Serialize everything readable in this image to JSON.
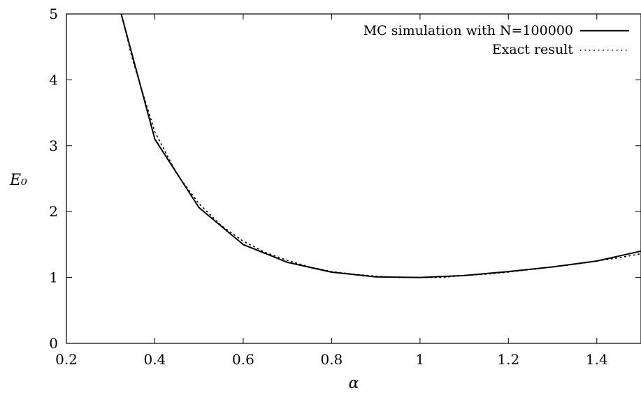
{
  "chart_data": {
    "type": "line",
    "title": "",
    "xlabel": "α",
    "ylabel": "E₀",
    "xlim": [
      0.2,
      1.5
    ],
    "ylim": [
      0,
      5
    ],
    "x_ticks": [
      "0.2",
      "0.4",
      "0.6",
      "0.8",
      "1",
      "1.2",
      "1.4"
    ],
    "y_ticks": [
      "0",
      "1",
      "2",
      "3",
      "4",
      "5"
    ],
    "grid": false,
    "legend_position": "top-right",
    "series": [
      {
        "name": "MC simulation with N=100000",
        "style": "solid",
        "color": "#000000",
        "x": [
          0.3,
          0.4,
          0.5,
          0.6,
          0.7,
          0.8,
          0.9,
          1.0,
          1.1,
          1.2,
          1.3,
          1.4,
          1.5
        ],
        "y": [
          5.6,
          3.1,
          2.06,
          1.5,
          1.23,
          1.08,
          1.01,
          1.0,
          1.03,
          1.09,
          1.16,
          1.25,
          1.4
        ]
      },
      {
        "name": "Exact result",
        "style": "dotted",
        "color": "#000000",
        "x": [
          0.3,
          0.35,
          0.4,
          0.45,
          0.5,
          0.55,
          0.6,
          0.65,
          0.7,
          0.75,
          0.8,
          0.85,
          0.9,
          0.95,
          1.0,
          1.05,
          1.1,
          1.15,
          1.2,
          1.25,
          1.3,
          1.35,
          1.4,
          1.45,
          1.5
        ],
        "y": [
          5.67,
          4.3,
          3.21,
          2.57,
          2.12,
          1.79,
          1.55,
          1.38,
          1.26,
          1.16,
          1.09,
          1.05,
          1.02,
          1.0,
          1.0,
          1.0,
          1.03,
          1.05,
          1.08,
          1.12,
          1.16,
          1.2,
          1.25,
          1.3,
          1.36
        ]
      }
    ]
  }
}
